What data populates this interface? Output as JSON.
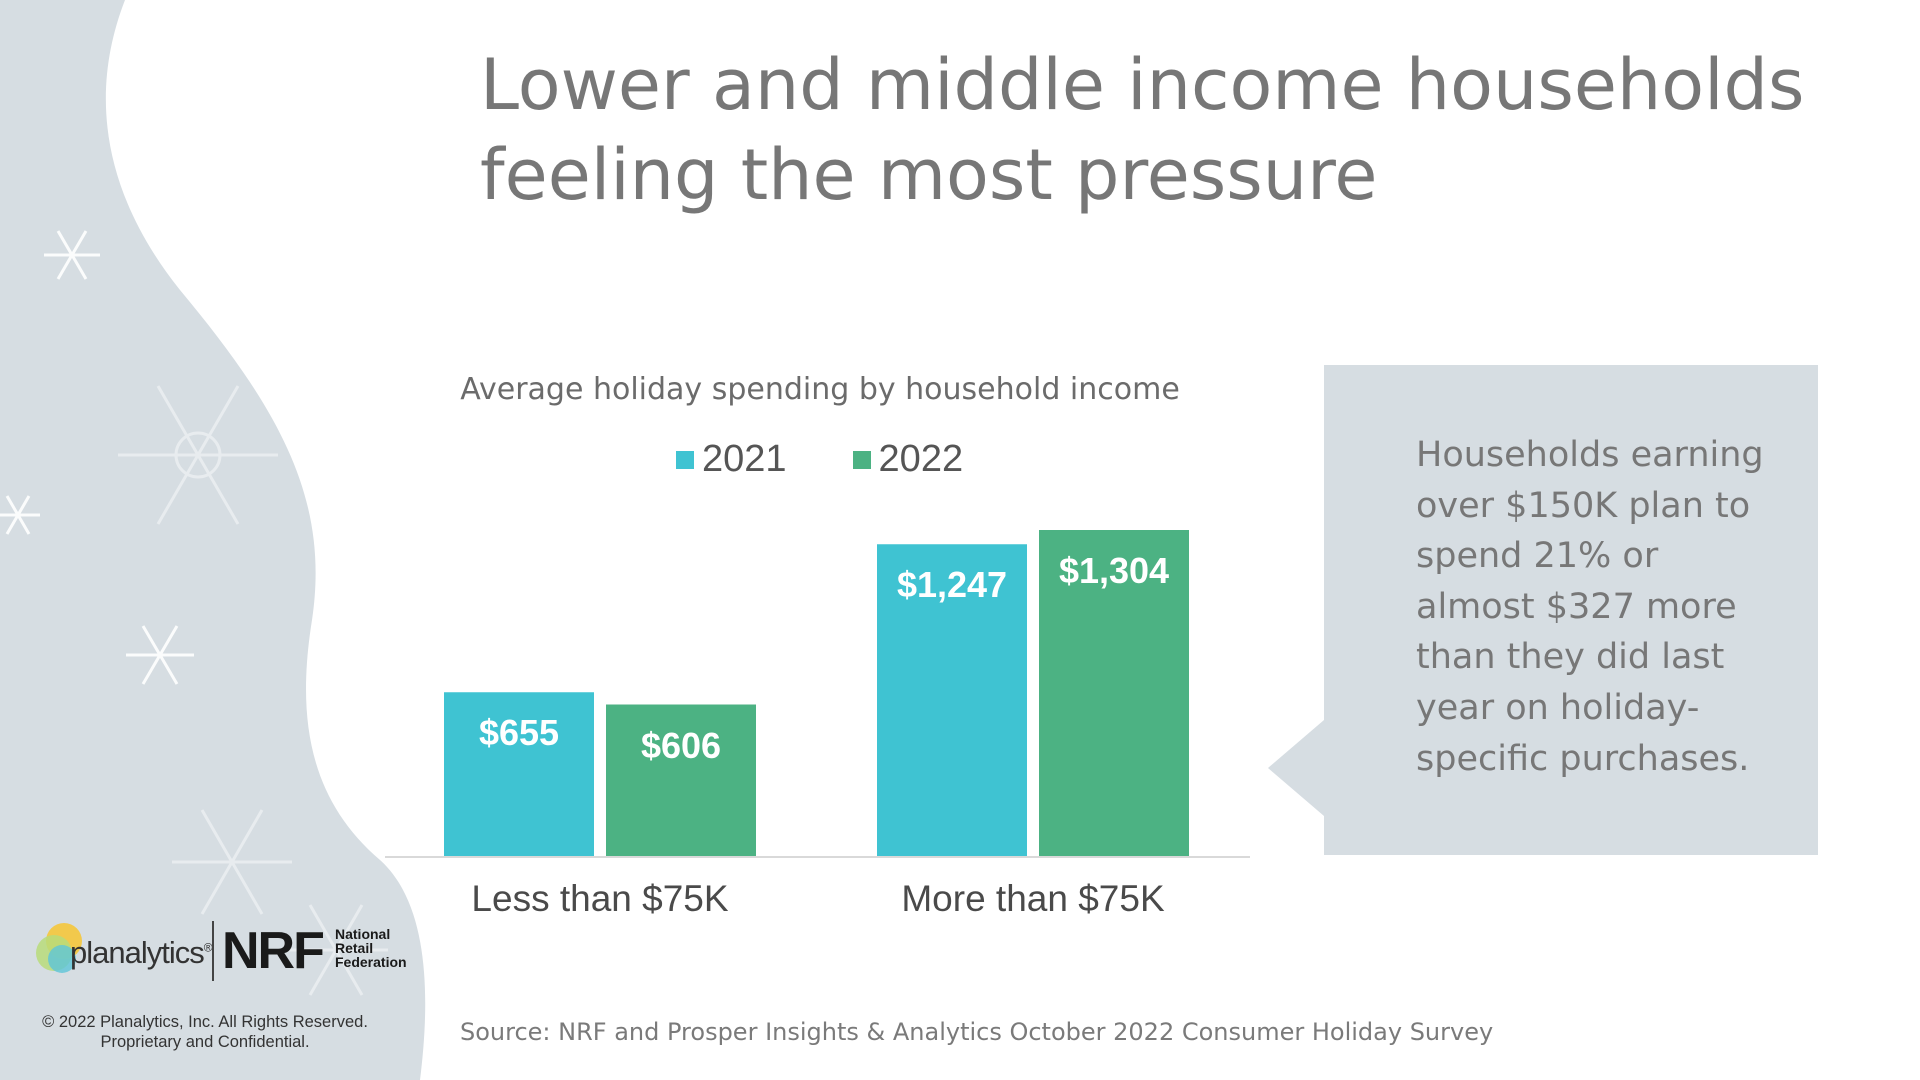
{
  "slide": {
    "title_line1": "Lower and middle income households",
    "title_line2": "feeling the most pressure",
    "source": "Source: NRF and Prosper Insights & Analytics October 2022 Consumer Holiday Survey",
    "callout_lines": [
      "Households earning",
      "over $150K plan to",
      "spend 21% or",
      "almost $327 more",
      "than they did last",
      "year on holiday-",
      "specific purchases."
    ],
    "copyright_line1": "© 2022 Planalytics, Inc. All Rights Reserved.",
    "copyright_line2": "Proprietary and Confidential.",
    "logos": {
      "planalytics": "planalytics",
      "planalytics_reg": "®",
      "nrf": "NRF",
      "nrf_line1": "National",
      "nrf_line2": "Retail",
      "nrf_line3": "Federation"
    }
  },
  "colors": {
    "series_2021": "#3fc3d2",
    "series_2022": "#4cb283",
    "background_shape": "#d6dde2",
    "title_text": "#777777"
  },
  "chart_data": {
    "type": "bar",
    "title": "Average holiday spending by household income",
    "categories": [
      "Less than $75K",
      "More than $75K"
    ],
    "series": [
      {
        "name": "2021",
        "values": [
          655,
          1247
        ],
        "labels": [
          "$655",
          "$1,247"
        ]
      },
      {
        "name": "2022",
        "values": [
          606,
          1304
        ],
        "labels": [
          "$606",
          "$1,304"
        ]
      }
    ],
    "xlabel": "",
    "ylabel": "",
    "ylim": [
      0,
      1360
    ],
    "grid": false,
    "legend": "top-center"
  }
}
